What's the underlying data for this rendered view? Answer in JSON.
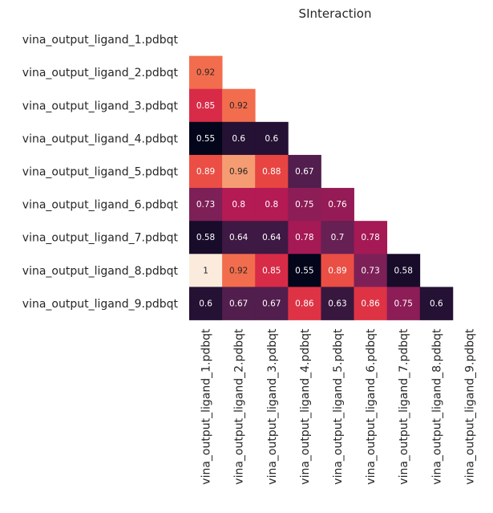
{
  "chart_data": {
    "type": "heatmap",
    "title": "SInteraction",
    "xlabel": "",
    "ylabel": "",
    "colormap": "rocket",
    "color_range": [
      0.55,
      1.0
    ],
    "mask": "upper-triangle-and-diagonal",
    "labels": [
      "vina_output_ligand_1.pdbqt",
      "vina_output_ligand_2.pdbqt",
      "vina_output_ligand_3.pdbqt",
      "vina_output_ligand_4.pdbqt",
      "vina_output_ligand_5.pdbqt",
      "vina_output_ligand_6.pdbqt",
      "vina_output_ligand_7.pdbqt",
      "vina_output_ligand_8.pdbqt",
      "vina_output_ligand_9.pdbqt"
    ],
    "cells": [
      {
        "row": 1,
        "col": 0,
        "value": 0.92,
        "label": "0.92"
      },
      {
        "row": 2,
        "col": 0,
        "value": 0.85,
        "label": "0.85"
      },
      {
        "row": 2,
        "col": 1,
        "value": 0.92,
        "label": "0.92"
      },
      {
        "row": 3,
        "col": 0,
        "value": 0.55,
        "label": "0.55"
      },
      {
        "row": 3,
        "col": 1,
        "value": 0.6,
        "label": "0.6"
      },
      {
        "row": 3,
        "col": 2,
        "value": 0.6,
        "label": "0.6"
      },
      {
        "row": 4,
        "col": 0,
        "value": 0.89,
        "label": "0.89"
      },
      {
        "row": 4,
        "col": 1,
        "value": 0.96,
        "label": "0.96"
      },
      {
        "row": 4,
        "col": 2,
        "value": 0.88,
        "label": "0.88"
      },
      {
        "row": 4,
        "col": 3,
        "value": 0.67,
        "label": "0.67"
      },
      {
        "row": 5,
        "col": 0,
        "value": 0.73,
        "label": "0.73"
      },
      {
        "row": 5,
        "col": 1,
        "value": 0.8,
        "label": "0.8"
      },
      {
        "row": 5,
        "col": 2,
        "value": 0.8,
        "label": "0.8"
      },
      {
        "row": 5,
        "col": 3,
        "value": 0.75,
        "label": "0.75"
      },
      {
        "row": 5,
        "col": 4,
        "value": 0.76,
        "label": "0.76"
      },
      {
        "row": 6,
        "col": 0,
        "value": 0.58,
        "label": "0.58"
      },
      {
        "row": 6,
        "col": 1,
        "value": 0.64,
        "label": "0.64"
      },
      {
        "row": 6,
        "col": 2,
        "value": 0.64,
        "label": "0.64"
      },
      {
        "row": 6,
        "col": 3,
        "value": 0.78,
        "label": "0.78"
      },
      {
        "row": 6,
        "col": 4,
        "value": 0.7,
        "label": "0.7"
      },
      {
        "row": 6,
        "col": 5,
        "value": 0.78,
        "label": "0.78"
      },
      {
        "row": 7,
        "col": 0,
        "value": 1.0,
        "label": "1"
      },
      {
        "row": 7,
        "col": 1,
        "value": 0.92,
        "label": "0.92"
      },
      {
        "row": 7,
        "col": 2,
        "value": 0.85,
        "label": "0.85"
      },
      {
        "row": 7,
        "col": 3,
        "value": 0.55,
        "label": "0.55"
      },
      {
        "row": 7,
        "col": 4,
        "value": 0.89,
        "label": "0.89"
      },
      {
        "row": 7,
        "col": 5,
        "value": 0.73,
        "label": "0.73"
      },
      {
        "row": 7,
        "col": 6,
        "value": 0.58,
        "label": "0.58"
      },
      {
        "row": 8,
        "col": 0,
        "value": 0.6,
        "label": "0.6"
      },
      {
        "row": 8,
        "col": 1,
        "value": 0.67,
        "label": "0.67"
      },
      {
        "row": 8,
        "col": 2,
        "value": 0.67,
        "label": "0.67"
      },
      {
        "row": 8,
        "col": 3,
        "value": 0.86,
        "label": "0.86"
      },
      {
        "row": 8,
        "col": 4,
        "value": 0.63,
        "label": "0.63"
      },
      {
        "row": 8,
        "col": 5,
        "value": 0.86,
        "label": "0.86"
      },
      {
        "row": 8,
        "col": 6,
        "value": 0.75,
        "label": "0.75"
      },
      {
        "row": 8,
        "col": 7,
        "value": 0.6,
        "label": "0.6"
      }
    ]
  }
}
